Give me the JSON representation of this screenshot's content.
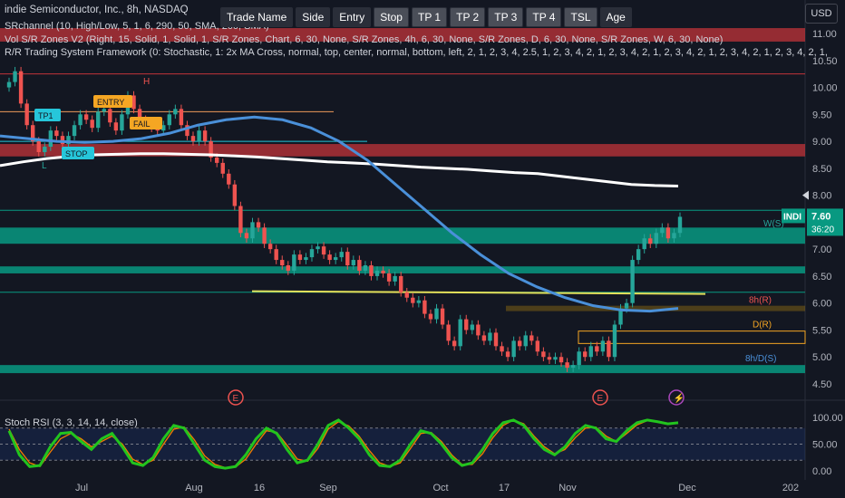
{
  "header": {
    "title": "indie Semiconductor, Inc., 8h, NASDAQ",
    "indicators": [
      "SRchannel (10, High/Low, 5, 1, 6, 290, 50, SMA, 200, SMA)",
      "Vol S/R Zones V2 (Right, 15, Solid, 1, Solid, 1, S/R Zones, Chart, 6, 30, None, S/R Zones, 4h, 6, 30, None, S/R Zones, D, 6, 30, None, S/R Zones, W, 6, 30, None)",
      "R/R Trading System Framework (0: Stochastic, 1: 2x MA Cross, normal, top, center, normal, bottom, left, 2, 1, 2, 3, 4, 2.5, 1, 2, 3, 4, 2, 1, 2, 3, 4, 2, 1, 2, 3, 4, 2, 1, 2, 3, 4, 2, 1, 2, 3, 4, 2, 1,"
    ],
    "rsi_label": "Stoch RSI (3, 3, 14, 14, close)",
    "currency": "USD"
  },
  "toolbar": {
    "buttons": [
      "Trade Name",
      "Side",
      "Entry",
      "Stop",
      "TP 1",
      "TP 2",
      "TP 3",
      "TP 4",
      "TSL",
      "Age"
    ],
    "active": [
      true,
      true,
      true,
      false,
      false,
      false,
      false,
      false,
      false,
      true
    ]
  },
  "colors": {
    "background": "#131722",
    "up": "#26a69a",
    "down": "#ef5350",
    "sma50": "#4a90d9",
    "sma200": "#ffffff",
    "support_zone": "#089981",
    "resistance_zone": "#c2343a",
    "stoch_k": "#22c41e",
    "stoch_d": "#f57c00"
  },
  "chart_data": {
    "type": "candlestick",
    "symbol": "INDI",
    "last_price": "7.60",
    "countdown": "36:20",
    "y_ticks": [
      "11.00",
      "10.50",
      "10.00",
      "9.50",
      "9.00",
      "8.50",
      "8.00",
      "7.50",
      "7.00",
      "6.50",
      "6.00",
      "5.50",
      "5.00",
      "4.50"
    ],
    "x_ticks": [
      "Jul",
      "Aug",
      "16",
      "Sep",
      "Oct",
      "17",
      "Nov",
      "Dec",
      "202"
    ],
    "ylim": [
      4.3,
      11.25
    ],
    "closes": [
      10.1,
      10.3,
      9.7,
      9.3,
      9.0,
      8.8,
      8.9,
      9.2,
      9.1,
      8.95,
      9.1,
      9.3,
      9.5,
      9.4,
      9.25,
      9.55,
      9.6,
      9.35,
      9.2,
      9.5,
      9.85,
      9.6,
      9.4,
      9.3,
      9.25,
      9.2,
      9.3,
      9.5,
      9.6,
      9.3,
      9.1,
      9.0,
      9.2,
      9.0,
      8.7,
      8.6,
      8.4,
      8.2,
      7.8,
      7.3,
      7.2,
      7.5,
      7.4,
      7.1,
      7.0,
      6.8,
      6.7,
      6.6,
      6.9,
      6.8,
      6.85,
      7.0,
      7.05,
      6.9,
      6.8,
      6.85,
      6.95,
      6.7,
      6.8,
      6.6,
      6.7,
      6.5,
      6.6,
      6.55,
      6.4,
      6.5,
      6.2,
      6.1,
      6.0,
      6.05,
      5.8,
      5.7,
      5.9,
      5.6,
      5.3,
      5.2,
      5.7,
      5.5,
      5.6,
      5.4,
      5.3,
      5.45,
      5.2,
      5.1,
      5.0,
      5.3,
      5.2,
      5.4,
      5.3,
      5.1,
      5.0,
      4.95,
      5.0,
      4.9,
      4.8,
      4.85,
      5.1,
      5.0,
      5.2,
      5.1,
      5.3,
      5.0,
      5.6,
      5.9,
      6.0,
      6.8,
      7.0,
      7.2,
      7.1,
      7.3,
      7.4,
      7.2,
      7.3,
      7.6
    ],
    "sma50": [
      9.1,
      9.05,
      9.0,
      8.98,
      9.0,
      9.05,
      9.15,
      9.3,
      9.4,
      9.45,
      9.4,
      9.25,
      9.0,
      8.65,
      8.2,
      7.75,
      7.3,
      6.9,
      6.55,
      6.3,
      6.1,
      5.95,
      5.87,
      5.85,
      5.9
    ],
    "sma200": [
      8.55,
      8.62,
      8.68,
      8.72,
      8.75,
      8.76,
      8.77,
      8.77,
      8.76,
      8.75,
      8.73,
      8.71,
      8.68,
      8.65,
      8.62,
      8.6,
      8.58,
      8.55,
      8.52,
      8.5,
      8.48,
      8.45,
      8.42,
      8.4,
      8.35,
      8.3,
      8.25,
      8.2,
      8.18,
      8.17
    ],
    "support_zones": [
      [
        7.1,
        7.4
      ],
      [
        6.55,
        6.68
      ],
      [
        4.7,
        4.85
      ]
    ],
    "resistance_zones": [
      [
        10.85,
        11.1
      ],
      [
        8.72,
        8.95
      ]
    ],
    "zone_labels": [
      "W(S)",
      "8h(R)",
      "D(R)",
      "8h/D(S)"
    ],
    "annotations": [
      "TP1",
      "ENTRY",
      "STOP",
      "FAIL",
      "H",
      "L"
    ],
    "stoch_ticks": [
      "100.00",
      "50.00",
      "0.00"
    ],
    "stoch_k": [
      75,
      30,
      8,
      10,
      45,
      70,
      72,
      55,
      40,
      60,
      70,
      45,
      15,
      10,
      25,
      60,
      85,
      80,
      50,
      20,
      8,
      5,
      8,
      30,
      60,
      80,
      70,
      40,
      15,
      20,
      50,
      85,
      95,
      80,
      60,
      30,
      10,
      8,
      20,
      50,
      75,
      70,
      50,
      25,
      10,
      15,
      40,
      70,
      90,
      95,
      85,
      60,
      40,
      30,
      45,
      70,
      85,
      80,
      60,
      55,
      75,
      90,
      95,
      92,
      88,
      90
    ],
    "stoch_d": [
      78,
      40,
      15,
      8,
      35,
      60,
      70,
      60,
      45,
      55,
      65,
      50,
      22,
      12,
      20,
      50,
      78,
      82,
      58,
      28,
      12,
      6,
      7,
      22,
      50,
      75,
      72,
      48,
      22,
      18,
      42,
      78,
      92,
      84,
      65,
      38,
      15,
      8,
      15,
      42,
      70,
      72,
      55,
      30,
      12,
      12,
      32,
      62,
      85,
      95,
      88,
      65,
      45,
      32,
      40,
      62,
      80,
      82,
      65,
      55,
      70,
      86,
      94,
      93,
      89,
      89
    ]
  }
}
